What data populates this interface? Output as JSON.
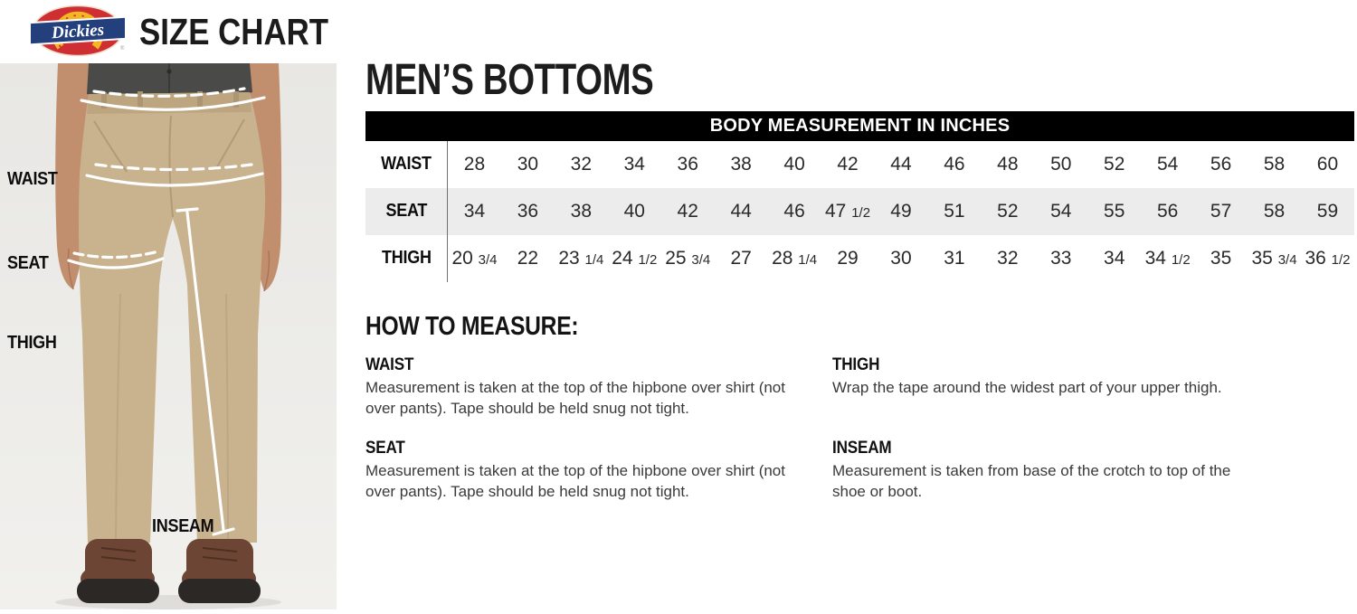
{
  "header": {
    "brand": "Dickies",
    "title": "SIZE CHART"
  },
  "figure": {
    "labels": {
      "waist": "WAIST",
      "seat": "SEAT",
      "thigh": "THIGH",
      "inseam": "INSEAM"
    },
    "colors": {
      "background": "#e8e7e4",
      "pants": "#c9b28e",
      "pants_seam": "#b19a76",
      "shirt": "#4a4a48",
      "skin": "#c18e6e",
      "boot": "#6d4534",
      "sole": "#2c2826",
      "measure_line": "#ffffff"
    }
  },
  "main": {
    "title": "MEN’S BOTTOMS",
    "table": {
      "header": "BODY MEASUREMENT IN INCHES",
      "rows": [
        {
          "label": "WAIST",
          "shaded": false,
          "values": [
            "28",
            "30",
            "32",
            "34",
            "36",
            "38",
            "40",
            "42",
            "44",
            "46",
            "48",
            "50",
            "52",
            "54",
            "56",
            "58",
            "60"
          ]
        },
        {
          "label": "SEAT",
          "shaded": true,
          "values": [
            "34",
            "36",
            "38",
            "40",
            "42",
            "44",
            "46",
            "47 1/2",
            "49",
            "51",
            "52",
            "54",
            "55",
            "56",
            "57",
            "58",
            "59"
          ]
        },
        {
          "label": "THIGH",
          "shaded": false,
          "values": [
            "20 3/4",
            "22",
            "23 1/4",
            "24 1/2",
            "25 3/4",
            "27",
            "28 1/4",
            "29",
            "30",
            "31",
            "32",
            "33",
            "34",
            "34 1/2",
            "35",
            "35 3/4",
            "36 1/2"
          ]
        }
      ]
    },
    "how_to_measure": {
      "title": "HOW TO MEASURE:",
      "items": [
        {
          "label": "WAIST",
          "text": "Measurement is taken at the top of the hipbone over shirt (not over pants). Tape should be held snug not tight."
        },
        {
          "label": "THIGH",
          "text": "Wrap the tape around the widest part of your upper thigh."
        },
        {
          "label": "SEAT",
          "text": "Measurement is taken at the top of the hipbone over shirt (not over pants). Tape should be held snug not tight."
        },
        {
          "label": "INSEAM",
          "text": "Measurement is taken from base of the crotch to top of the shoe or boot."
        }
      ]
    }
  },
  "colors": {
    "logo_red": "#cf2e33",
    "logo_blue": "#23407c",
    "logo_yellow": "#f2b722",
    "table_header_bg": "#000000",
    "table_header_text": "#ffffff",
    "row_shaded_bg": "#ececec",
    "text_dark": "#1b1b1b",
    "body_text": "#3a3a3a"
  }
}
